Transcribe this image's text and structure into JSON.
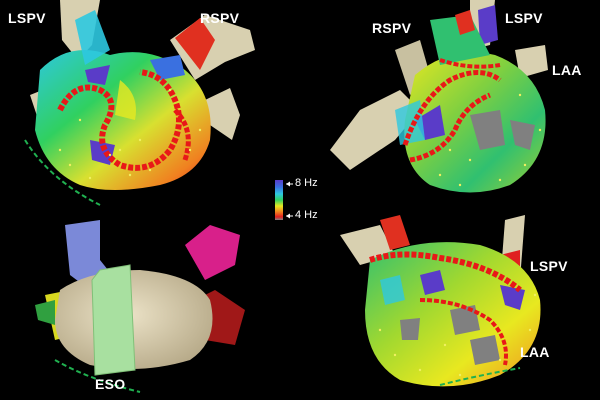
{
  "labels": {
    "top_left_lspv": "LSPV",
    "top_left_rspv": "RSPV",
    "top_right_rspv": "RSPV",
    "top_right_lspv": "LSPV",
    "top_right_laa": "LAA",
    "bottom_left_eso": "ESO",
    "bottom_right_lspv": "LSPV",
    "bottom_right_laa": "LAA"
  },
  "scale": {
    "high": "8 Hz",
    "low": "4 Hz",
    "colors": [
      "#5a3cc8",
      "#3a70e0",
      "#2ec8e0",
      "#30d060",
      "#e8e820",
      "#f08020",
      "#e02020",
      "#808080"
    ]
  }
}
